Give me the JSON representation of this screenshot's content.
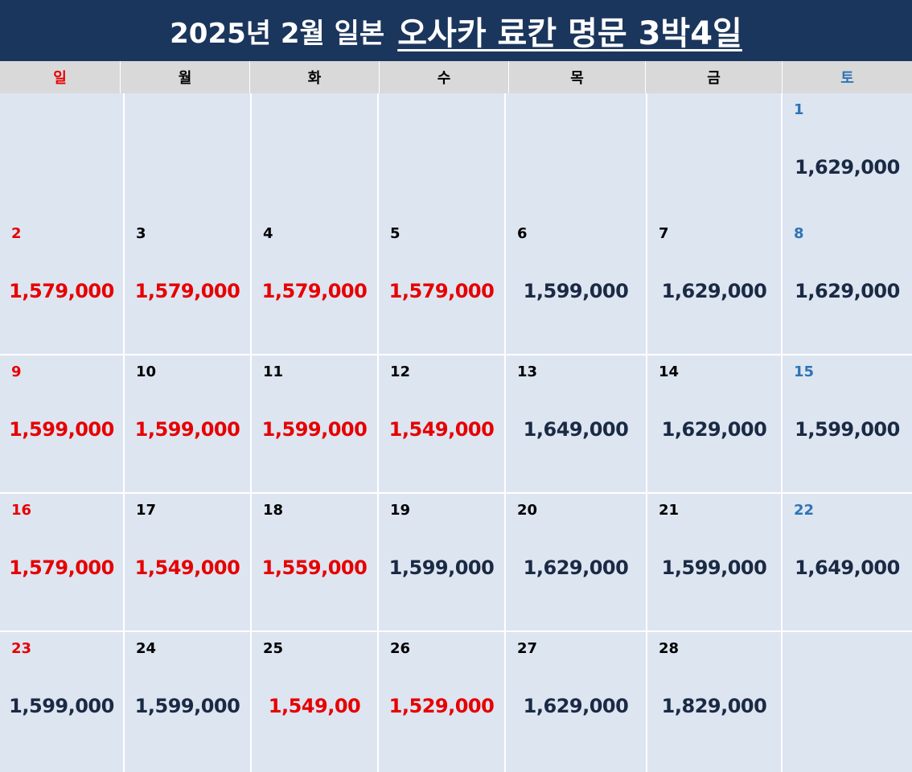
{
  "title": {
    "part1": "2025년 2월 일본",
    "part2": "오사카 료칸 명문 3박4일"
  },
  "weekdays": [
    "일",
    "월",
    "화",
    "수",
    "목",
    "금",
    "토"
  ],
  "colors": {
    "header_bg": "#1b365d",
    "cell_bg": "#dde5f1",
    "weekday_bg": "#d9d9d9",
    "sunday": "#e60000",
    "saturday": "#2e74b5",
    "price_default": "#1b2a44",
    "price_highlight": "#e60000"
  },
  "weeks": [
    [
      {
        "day": "",
        "price": "",
        "highlight": false
      },
      {
        "day": "",
        "price": "",
        "highlight": false
      },
      {
        "day": "",
        "price": "",
        "highlight": false
      },
      {
        "day": "",
        "price": "",
        "highlight": false
      },
      {
        "day": "",
        "price": "",
        "highlight": false
      },
      {
        "day": "",
        "price": "",
        "highlight": false
      },
      {
        "day": "1",
        "price": "1,629,000",
        "highlight": false
      }
    ],
    [
      {
        "day": "2",
        "price": "1,579,000",
        "highlight": true
      },
      {
        "day": "3",
        "price": "1,579,000",
        "highlight": true
      },
      {
        "day": "4",
        "price": "1,579,000",
        "highlight": true
      },
      {
        "day": "5",
        "price": "1,579,000",
        "highlight": true
      },
      {
        "day": "6",
        "price": "1,599,000",
        "highlight": false
      },
      {
        "day": "7",
        "price": "1,629,000",
        "highlight": false
      },
      {
        "day": "8",
        "price": "1,629,000",
        "highlight": false
      }
    ],
    [
      {
        "day": "9",
        "price": "1,599,000",
        "highlight": true
      },
      {
        "day": "10",
        "price": "1,599,000",
        "highlight": true
      },
      {
        "day": "11",
        "price": "1,599,000",
        "highlight": true
      },
      {
        "day": "12",
        "price": "1,549,000",
        "highlight": true
      },
      {
        "day": "13",
        "price": "1,649,000",
        "highlight": false
      },
      {
        "day": "14",
        "price": "1,629,000",
        "highlight": false
      },
      {
        "day": "15",
        "price": "1,599,000",
        "highlight": false
      }
    ],
    [
      {
        "day": "16",
        "price": "1,579,000",
        "highlight": true
      },
      {
        "day": "17",
        "price": "1,549,000",
        "highlight": true
      },
      {
        "day": "18",
        "price": "1,559,000",
        "highlight": true
      },
      {
        "day": "19",
        "price": "1,599,000",
        "highlight": false
      },
      {
        "day": "20",
        "price": "1,629,000",
        "highlight": false
      },
      {
        "day": "21",
        "price": "1,599,000",
        "highlight": false
      },
      {
        "day": "22",
        "price": "1,649,000",
        "highlight": false
      }
    ],
    [
      {
        "day": "23",
        "price": "1,599,000",
        "highlight": false
      },
      {
        "day": "24",
        "price": "1,599,000",
        "highlight": false
      },
      {
        "day": "25",
        "price": "1,549,00",
        "highlight": true
      },
      {
        "day": "26",
        "price": "1,529,000",
        "highlight": true
      },
      {
        "day": "27",
        "price": "1,629,000",
        "highlight": false
      },
      {
        "day": "28",
        "price": "1,829,000",
        "highlight": false
      },
      {
        "day": "",
        "price": "",
        "highlight": false
      }
    ]
  ]
}
